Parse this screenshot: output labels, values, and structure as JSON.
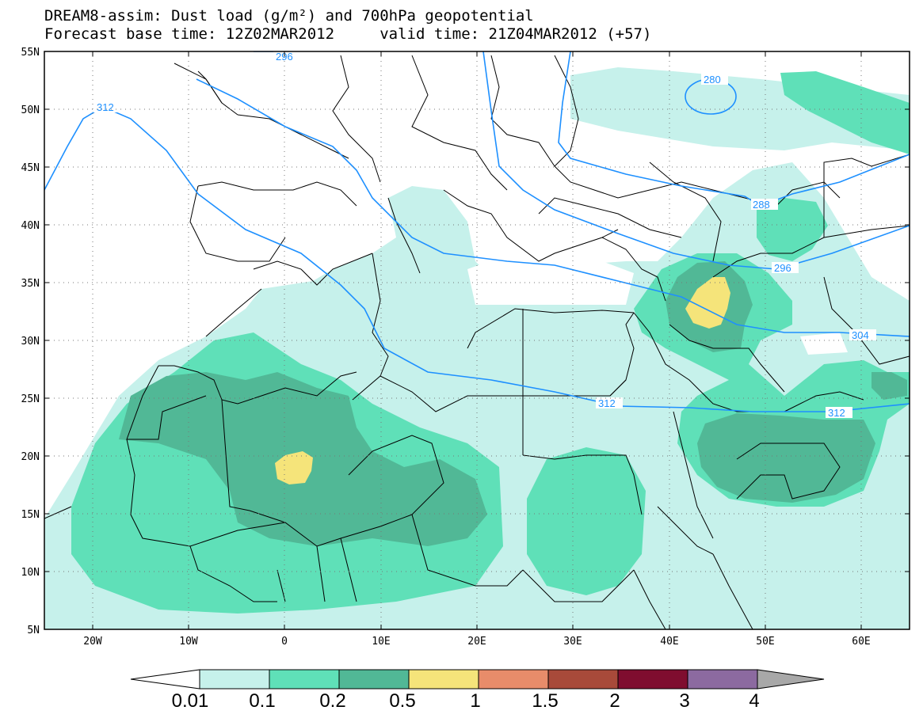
{
  "title_line1": "DREAM8-assim: Dust load (g/m²) and 700hPa geopotential",
  "title_line2": "Forecast base time: 12Z02MAR2012     valid time: 21Z04MAR2012 (+57)",
  "lat_labels": [
    "55N",
    "50N",
    "45N",
    "40N",
    "35N",
    "30N",
    "25N",
    "20N",
    "15N",
    "10N",
    "5N"
  ],
  "lon_labels": [
    "20W",
    "10W",
    "0",
    "10E",
    "20E",
    "30E",
    "40E",
    "50E",
    "60E"
  ],
  "contour_labels": [
    "296",
    "312",
    "280",
    "288",
    "296",
    "304",
    "312",
    "312"
  ],
  "colorbar": {
    "levels": [
      "0.01",
      "0.1",
      "0.2",
      "0.5",
      "1",
      "1.5",
      "2",
      "3",
      "4"
    ],
    "colors": [
      "#ffffff",
      "#c6f1eb",
      "#5fe0b8",
      "#51b896",
      "#f5e47a",
      "#e88c6a",
      "#a84a3a",
      "#7f0d2f",
      "#8c6aa0",
      "#a8a8a8"
    ]
  },
  "colors": {
    "shade_light": "#c6f1eb",
    "shade_mid": "#5fe0b8",
    "shade_dark": "#51b896",
    "shade_yellow": "#f5e47a",
    "contour": "#1e90ff",
    "border": "#000000"
  }
}
